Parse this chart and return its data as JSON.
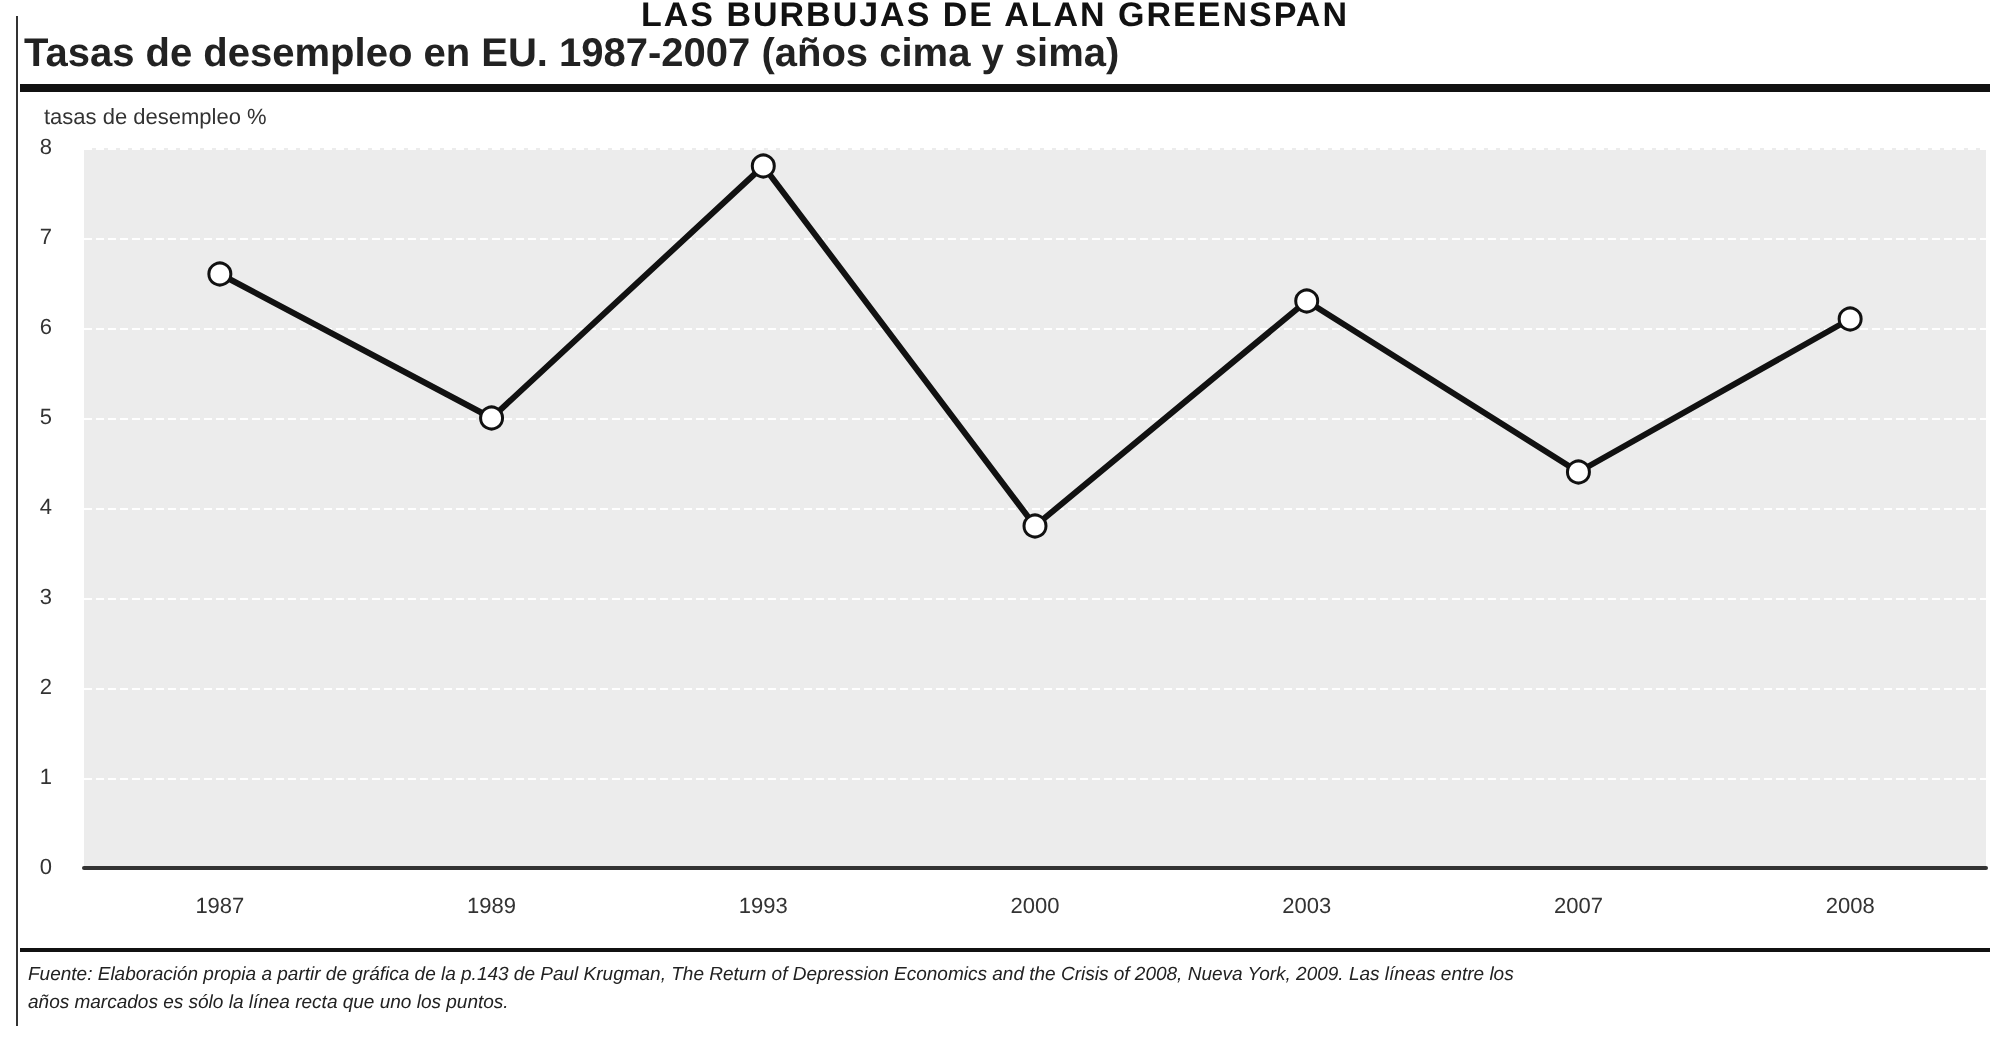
{
  "chart_data": {
    "type": "line",
    "title": "Tasas de desempleo en EU. 1987-2007 (años cima y sima)",
    "ylabel": "tasas de desempleo %",
    "categories": [
      "1987",
      "1989",
      "1993",
      "2000",
      "2003",
      "2007",
      "2008"
    ],
    "series": [
      {
        "color": "#111111",
        "values": [
          6.6,
          5.0,
          7.8,
          3.8,
          6.3,
          4.4,
          6.1
        ]
      }
    ],
    "ylim": [
      0,
      8
    ],
    "yticks": [
      0,
      1,
      2,
      3,
      4,
      5,
      6,
      7,
      8
    ],
    "grid": "y",
    "marker": "circle",
    "line_style": "solid",
    "annotations": [
      "LAS BURBUJAS DE ALAN GREENSPAN",
      "Fuente: Elaboración propia a partir de gráfica de la p.143 de Paul Krugman, The Return of Depression Economics and the Crisis of 2008, Nueva York, 2009. Las líneas entre los años marcados es sólo la línea recta que uno los puntos."
    ]
  }
}
